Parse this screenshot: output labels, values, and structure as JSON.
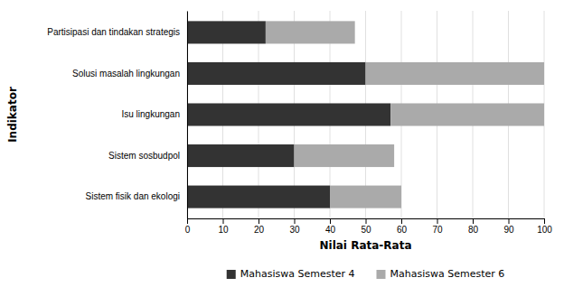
{
  "chart_data": {
    "type": "bar",
    "orientation": "horizontal",
    "stacked": true,
    "categories": [
      "Sistem fisik dan ekologi",
      "Sistem sosbudpol",
      "Isu lingkungan",
      "Solusi masalah lingkungan",
      "Partisipasi dan tindakan strategis"
    ],
    "series": [
      {
        "name": "Mahasiswa Semester 4",
        "color": "#333333",
        "values": [
          40,
          30,
          57,
          50,
          22
        ]
      },
      {
        "name": "Mahasiswa Semester 6",
        "color": "#aaaaaa",
        "values": [
          20,
          28,
          43,
          50,
          25
        ]
      }
    ],
    "xlabel": "Nilai Rata-Rata",
    "ylabel": "Indikator",
    "xlim": [
      0,
      100
    ],
    "xticks": [
      0,
      10,
      20,
      30,
      40,
      50,
      60,
      70,
      80,
      90,
      100
    ],
    "grid": true,
    "legend": "bottom"
  }
}
